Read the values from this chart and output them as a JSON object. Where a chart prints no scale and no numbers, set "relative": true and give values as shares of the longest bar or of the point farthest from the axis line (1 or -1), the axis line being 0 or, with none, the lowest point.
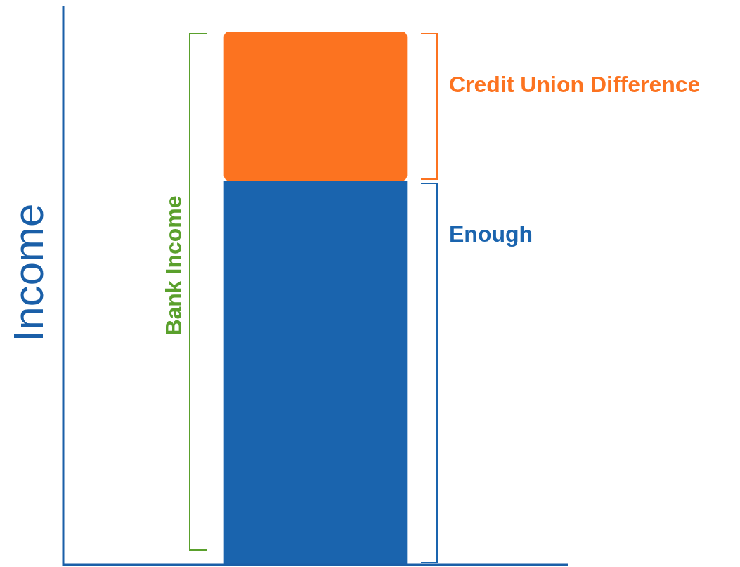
{
  "chart_data": {
    "type": "bar",
    "relative": true,
    "stacked": true,
    "ylabel": "Income",
    "categories": [
      null
    ],
    "series": [
      {
        "color": "#1a64ae",
        "values": [
          0.72
        ]
      },
      {
        "color": "#fc7320",
        "values": [
          0.28
        ]
      }
    ],
    "annotations": [
      "Credit Union Difference",
      "Enough",
      "Bank Income"
    ],
    "legend": false
  }
}
